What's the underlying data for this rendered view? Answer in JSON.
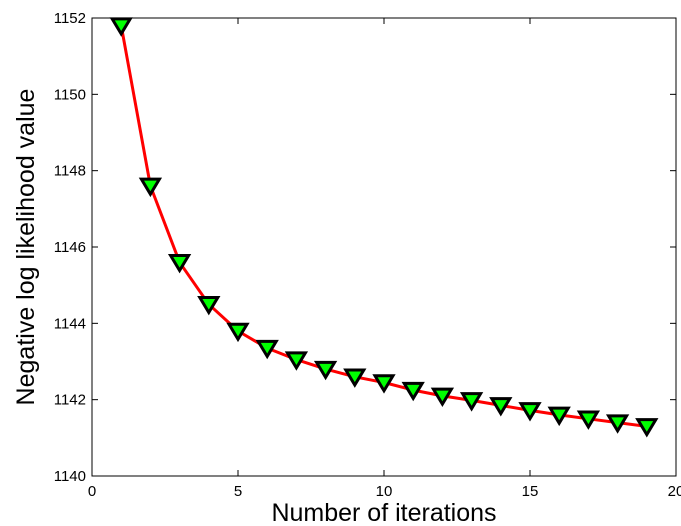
{
  "chart_data": {
    "type": "line",
    "title": "",
    "xlabel": "Number of iterations",
    "ylabel": "Negative log likelihood value",
    "xlim": [
      0,
      20
    ],
    "ylim": [
      1140,
      1152
    ],
    "xticks": [
      0,
      5,
      10,
      15,
      20
    ],
    "yticks": [
      1140,
      1142,
      1144,
      1146,
      1148,
      1150,
      1152
    ],
    "grid": false,
    "legend": "none",
    "series": [
      {
        "x": [
          1,
          2,
          3,
          4,
          5,
          6,
          7,
          8,
          9,
          10,
          11,
          12,
          13,
          14,
          15,
          16,
          17,
          18,
          19
        ],
        "y": [
          1151.8,
          1147.6,
          1145.6,
          1144.5,
          1143.8,
          1143.35,
          1143.05,
          1142.8,
          1142.6,
          1142.45,
          1142.25,
          1142.1,
          1141.98,
          1141.85,
          1141.72,
          1141.6,
          1141.5,
          1141.4,
          1141.3
        ],
        "line_color": "#ff0000",
        "marker": "triangle-down",
        "marker_fill": "#00ff00",
        "marker_edge": "#000000"
      }
    ]
  }
}
